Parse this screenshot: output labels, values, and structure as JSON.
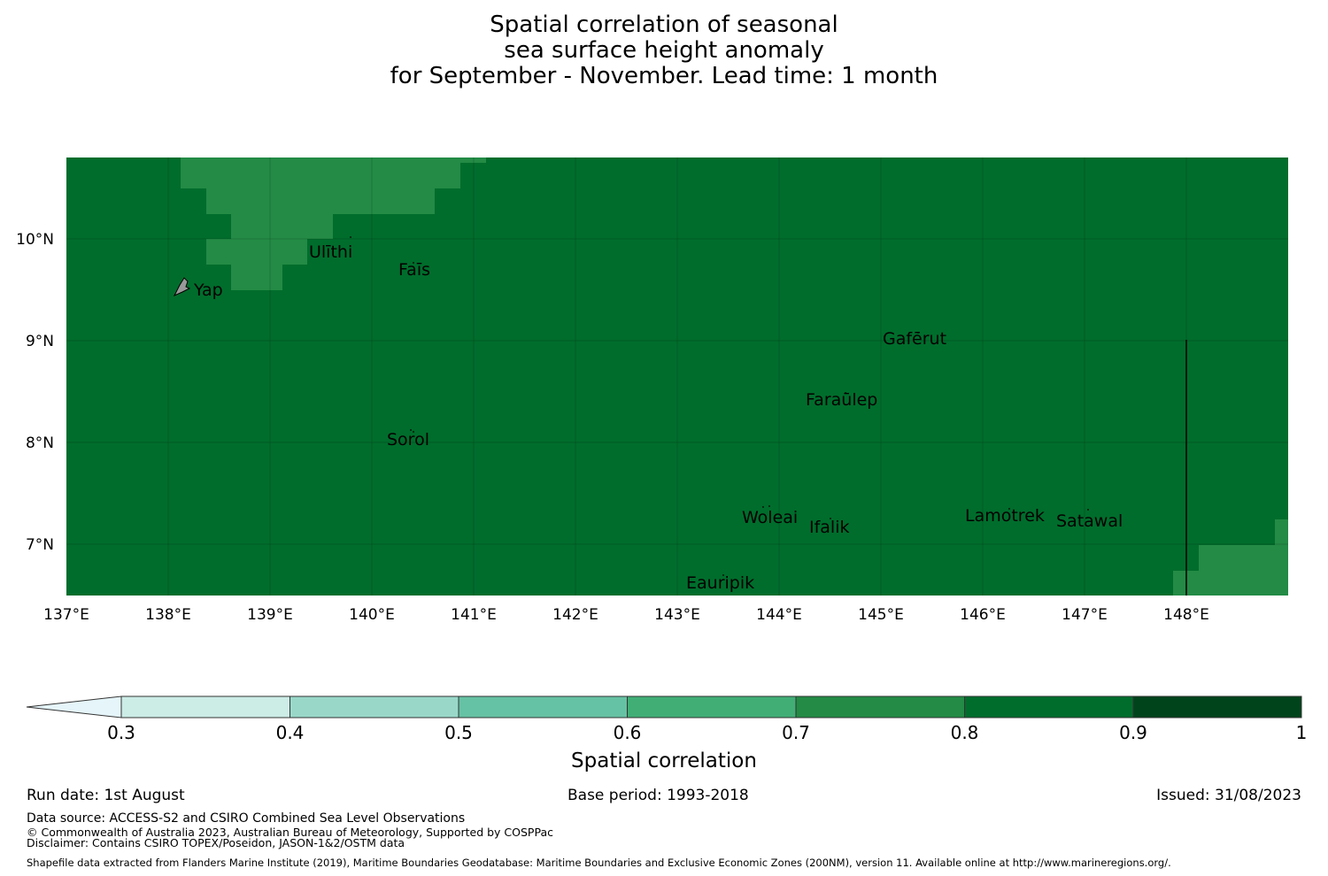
{
  "title": {
    "line1": "Spatial correlation of seasonal",
    "line2": "sea surface height anomaly",
    "line3": "for September - November. Lead time: 1 month"
  },
  "map": {
    "lon_range": [
      137,
      149
    ],
    "lat_range": [
      6.5,
      10.8
    ],
    "x_ticks": [
      "137°E",
      "138°E",
      "139°E",
      "140°E",
      "141°E",
      "142°E",
      "143°E",
      "144°E",
      "145°E",
      "146°E",
      "147°E",
      "148°E"
    ],
    "y_ticks": [
      "10°N",
      "9°N",
      "8°N",
      "7°N"
    ],
    "background_color": "#006d2c",
    "lighter_color": "#238b45",
    "places": [
      "Ulithi",
      "Fais",
      "Yap",
      "Gaferut",
      "Faraulep",
      "Sorol",
      "Woleai",
      "Ifalik",
      "Lamotrek",
      "Satawal",
      "Eauripik"
    ],
    "labels_display": [
      "Ulīthi",
      "Faīs",
      "Yap",
      "Gafērut",
      "Faraūlep",
      "Sorol",
      "Woleai",
      "Ifalik",
      "Lamotrek",
      "Satawal",
      "Eauripik"
    ]
  },
  "colorbar": {
    "label": "Spatial correlation",
    "ticks": [
      "0.3",
      "0.4",
      "0.5",
      "0.6",
      "0.7",
      "0.8",
      "0.9",
      "1"
    ],
    "colors": [
      "#e5f5f9",
      "#ccece6",
      "#99d8c9",
      "#66c2a4",
      "#41ae76",
      "#238b45",
      "#006d2c",
      "#00441b"
    ]
  },
  "footer": {
    "run_date": "Run date: 1st August",
    "base_period": "Base period: 1993-2018",
    "issued": "Issued: 31/08/2023",
    "data_source": "Data source: ACCESS-S2 and CSIRO Combined Sea Level Observations",
    "copyright": "© Commonwealth of Australia 2023, Australian Bureau of Meteorology, Supported by COSPPac",
    "disclaimer": "Disclaimer: Contains CSIRO TOPEX/Poseidon, JASON-1&2/OSTM data",
    "shapefile": "Shapefile data extracted from Flanders Marine Institute (2019), Maritime Boundaries Geodatabase: Maritime Boundaries and Exclusive Economic Zones (200NM), version 11. Available online at http://www.marineregions.org/."
  }
}
